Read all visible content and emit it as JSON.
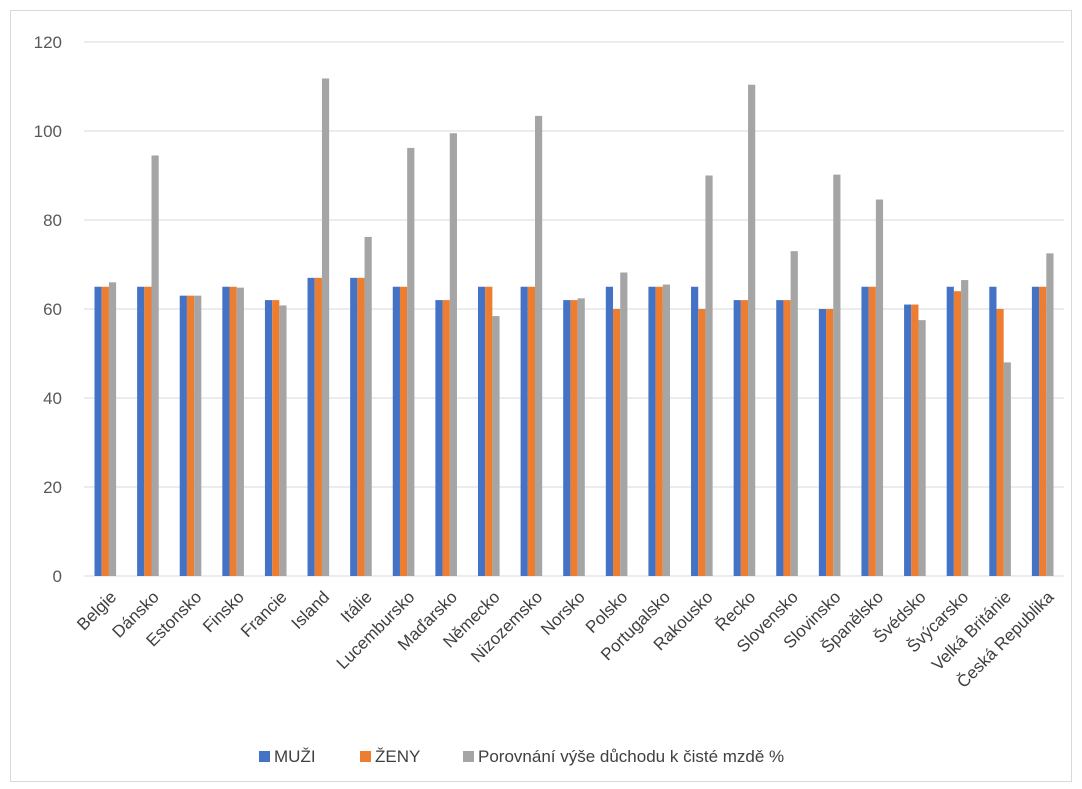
{
  "chart_data": {
    "type": "bar",
    "ylim": [
      0,
      120
    ],
    "yticks": [
      0,
      20,
      40,
      60,
      80,
      100,
      120
    ],
    "grid": true,
    "legend_position": "bottom",
    "categories": [
      "Belgie",
      "Dánsko",
      "Estonsko",
      "Finsko",
      "Francie",
      "Island",
      "Itálie",
      "Lucembursko",
      "Maďarsko",
      "Německo",
      "Nizozemsko",
      "Norsko",
      "Polsko",
      "Portugalsko",
      "Rakousko",
      "Řecko",
      "Slovensko",
      "Slovinsko",
      "Španělsko",
      "Švédsko",
      "Švýcarsko",
      "Velká Británie",
      "Česká Republika"
    ],
    "series": [
      {
        "name": "MUŽI",
        "color": "#4472c4",
        "values": [
          65,
          65,
          63,
          65,
          62,
          67,
          67,
          65,
          62,
          65,
          65,
          62,
          65,
          65,
          65,
          62,
          62,
          60,
          65,
          61,
          65,
          65,
          65
        ]
      },
      {
        "name": "ŽENY",
        "color": "#ed7d31",
        "values": [
          65,
          65,
          63,
          65,
          62,
          67,
          67,
          65,
          62,
          65,
          65,
          62,
          60,
          65,
          60,
          62,
          62,
          60,
          65,
          61,
          64,
          60,
          65
        ]
      },
      {
        "name": "Porovnání výše důchodu k čisté mzdě %",
        "color": "#a5a5a5",
        "values": [
          66,
          94.5,
          63,
          64.8,
          60.8,
          111.8,
          76.2,
          96.2,
          99.5,
          58.4,
          103.4,
          62.4,
          68.2,
          65.5,
          90,
          110.4,
          73,
          90.2,
          84.6,
          57.5,
          66.5,
          48,
          72.5
        ]
      }
    ]
  }
}
